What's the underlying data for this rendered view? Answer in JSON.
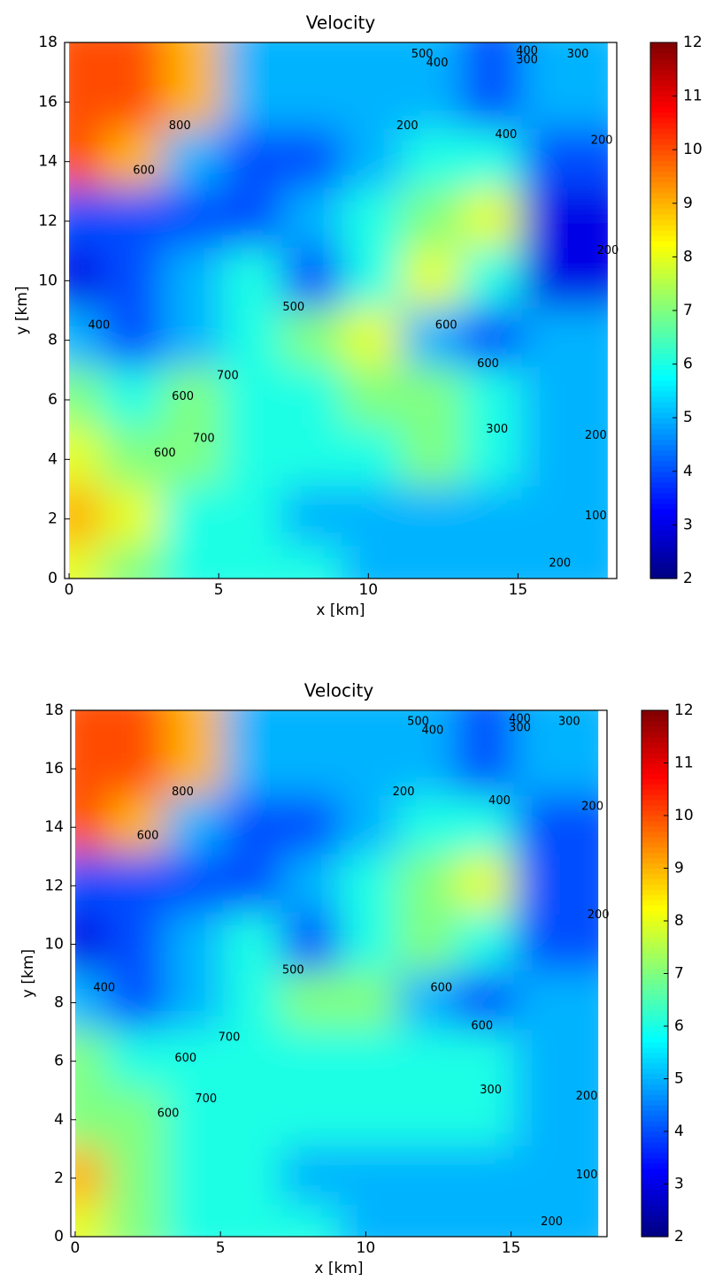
{
  "chart_data": [
    {
      "type": "heatmap",
      "title": "Velocity",
      "xlabel": "x [km]",
      "ylabel": "y [km]",
      "xlim": [
        -0.15,
        18.3
      ],
      "ylim": [
        0,
        18
      ],
      "xticks": [
        0,
        5,
        10,
        15
      ],
      "yticks": [
        0,
        2,
        4,
        6,
        8,
        10,
        12,
        14,
        16,
        18
      ],
      "colormap": "jet",
      "clim": [
        2,
        12
      ],
      "colorbar_ticks": [
        2,
        3,
        4,
        5,
        6,
        7,
        8,
        9,
        10,
        11,
        12
      ],
      "xbins": [
        0,
        2,
        4,
        6,
        8,
        10,
        12,
        14,
        16,
        18
      ],
      "ybins": [
        0,
        2,
        4,
        6,
        8,
        10,
        12,
        14,
        16,
        18
      ],
      "z": [
        [
          8,
          7,
          6,
          6,
          6,
          5,
          5,
          5,
          5
        ],
        [
          9,
          8,
          6,
          6,
          5,
          5,
          5,
          5,
          5
        ],
        [
          8,
          7,
          7,
          6,
          6,
          6,
          7,
          6,
          5
        ],
        [
          7,
          6,
          7,
          6,
          6,
          7,
          7,
          6,
          5
        ],
        [
          5,
          4,
          5,
          6,
          7,
          8,
          5,
          4,
          5
        ],
        [
          3,
          4,
          5,
          6,
          4,
          6,
          8,
          6,
          3
        ],
        [
          4,
          4,
          4,
          4,
          5,
          6,
          7,
          8,
          3
        ],
        [
          10,
          9,
          5,
          4,
          4,
          5,
          6,
          6,
          4
        ],
        [
          10,
          10,
          9,
          5,
          5,
          5,
          5,
          4,
          5
        ]
      ],
      "annotations": [
        {
          "text": "500",
          "x": 11.8,
          "y": 17.6
        },
        {
          "text": "400",
          "x": 12.3,
          "y": 17.3
        },
        {
          "text": "400",
          "x": 15.3,
          "y": 17.7
        },
        {
          "text": "300",
          "x": 15.3,
          "y": 17.4
        },
        {
          "text": "300",
          "x": 17,
          "y": 17.6
        },
        {
          "text": "800",
          "x": 3.7,
          "y": 15.2
        },
        {
          "text": "600",
          "x": 2.5,
          "y": 13.7
        },
        {
          "text": "400",
          "x": 1,
          "y": 8.5
        },
        {
          "text": "500",
          "x": 7.5,
          "y": 9.1
        },
        {
          "text": "700",
          "x": 5.3,
          "y": 6.8
        },
        {
          "text": "600",
          "x": 3.8,
          "y": 6.1
        },
        {
          "text": "700",
          "x": 4.5,
          "y": 4.7
        },
        {
          "text": "600",
          "x": 3.2,
          "y": 4.2
        },
        {
          "text": "600",
          "x": 12.6,
          "y": 8.5
        },
        {
          "text": "600",
          "x": 14,
          "y": 7.2
        },
        {
          "text": "300",
          "x": 14.3,
          "y": 5
        },
        {
          "text": "200",
          "x": 17.6,
          "y": 4.8
        },
        {
          "text": "200",
          "x": 17.8,
          "y": 14.7
        },
        {
          "text": "200",
          "x": 18,
          "y": 11
        },
        {
          "text": "100",
          "x": 17.6,
          "y": 2.1
        },
        {
          "text": "200",
          "x": 16.4,
          "y": 0.5
        },
        {
          "text": "200",
          "x": 11.3,
          "y": 15.2
        },
        {
          "text": "400",
          "x": 14.6,
          "y": 14.9
        }
      ]
    },
    {
      "type": "heatmap",
      "title": "Velocity",
      "xlabel": "x [km]",
      "ylabel": "y [km]",
      "xlim": [
        -0.15,
        18.3
      ],
      "ylim": [
        0,
        18
      ],
      "xticks": [
        0,
        5,
        10,
        15
      ],
      "yticks": [
        0,
        2,
        4,
        6,
        8,
        10,
        12,
        14,
        16,
        18
      ],
      "colormap": "jet",
      "clim": [
        2,
        12
      ],
      "colorbar_ticks": [
        2,
        3,
        4,
        5,
        6,
        7,
        8,
        9,
        10,
        11,
        12
      ],
      "xbins": [
        0,
        2,
        4,
        6,
        8,
        10,
        12,
        14,
        16,
        18
      ],
      "ybins": [
        0,
        2,
        4,
        6,
        8,
        10,
        12,
        14,
        16,
        18
      ],
      "z": [
        [
          8,
          7,
          6,
          6,
          6,
          5,
          5,
          5,
          5
        ],
        [
          9,
          7,
          6,
          6,
          5,
          5,
          5,
          5,
          5
        ],
        [
          7,
          7,
          6,
          6,
          6,
          6,
          6,
          6,
          5
        ],
        [
          7,
          6,
          6,
          6,
          6,
          6,
          6,
          6,
          5
        ],
        [
          5,
          4,
          5,
          6,
          7,
          7,
          5,
          4,
          5
        ],
        [
          3,
          4,
          5,
          6,
          4,
          6,
          7,
          6,
          4
        ],
        [
          4,
          4,
          4,
          4,
          5,
          6,
          7,
          8,
          4
        ],
        [
          10,
          9,
          5,
          4,
          4,
          5,
          6,
          6,
          4
        ],
        [
          10,
          10,
          9,
          5,
          5,
          5,
          5,
          4,
          5
        ]
      ],
      "annotations": [
        {
          "text": "500",
          "x": 11.8,
          "y": 17.6
        },
        {
          "text": "400",
          "x": 12.3,
          "y": 17.3
        },
        {
          "text": "400",
          "x": 15.3,
          "y": 17.7
        },
        {
          "text": "300",
          "x": 15.3,
          "y": 17.4
        },
        {
          "text": "300",
          "x": 17,
          "y": 17.6
        },
        {
          "text": "800",
          "x": 3.7,
          "y": 15.2
        },
        {
          "text": "600",
          "x": 2.5,
          "y": 13.7
        },
        {
          "text": "400",
          "x": 1,
          "y": 8.5
        },
        {
          "text": "500",
          "x": 7.5,
          "y": 9.1
        },
        {
          "text": "700",
          "x": 5.3,
          "y": 6.8
        },
        {
          "text": "600",
          "x": 3.8,
          "y": 6.1
        },
        {
          "text": "700",
          "x": 4.5,
          "y": 4.7
        },
        {
          "text": "600",
          "x": 3.2,
          "y": 4.2
        },
        {
          "text": "600",
          "x": 12.6,
          "y": 8.5
        },
        {
          "text": "600",
          "x": 14,
          "y": 7.2
        },
        {
          "text": "300",
          "x": 14.3,
          "y": 5
        },
        {
          "text": "200",
          "x": 17.6,
          "y": 4.8
        },
        {
          "text": "200",
          "x": 17.8,
          "y": 14.7
        },
        {
          "text": "200",
          "x": 18,
          "y": 11
        },
        {
          "text": "100",
          "x": 17.6,
          "y": 2.1
        },
        {
          "text": "200",
          "x": 16.4,
          "y": 0.5
        },
        {
          "text": "200",
          "x": 11.3,
          "y": 15.2
        },
        {
          "text": "400",
          "x": 14.6,
          "y": 14.9
        }
      ]
    }
  ]
}
